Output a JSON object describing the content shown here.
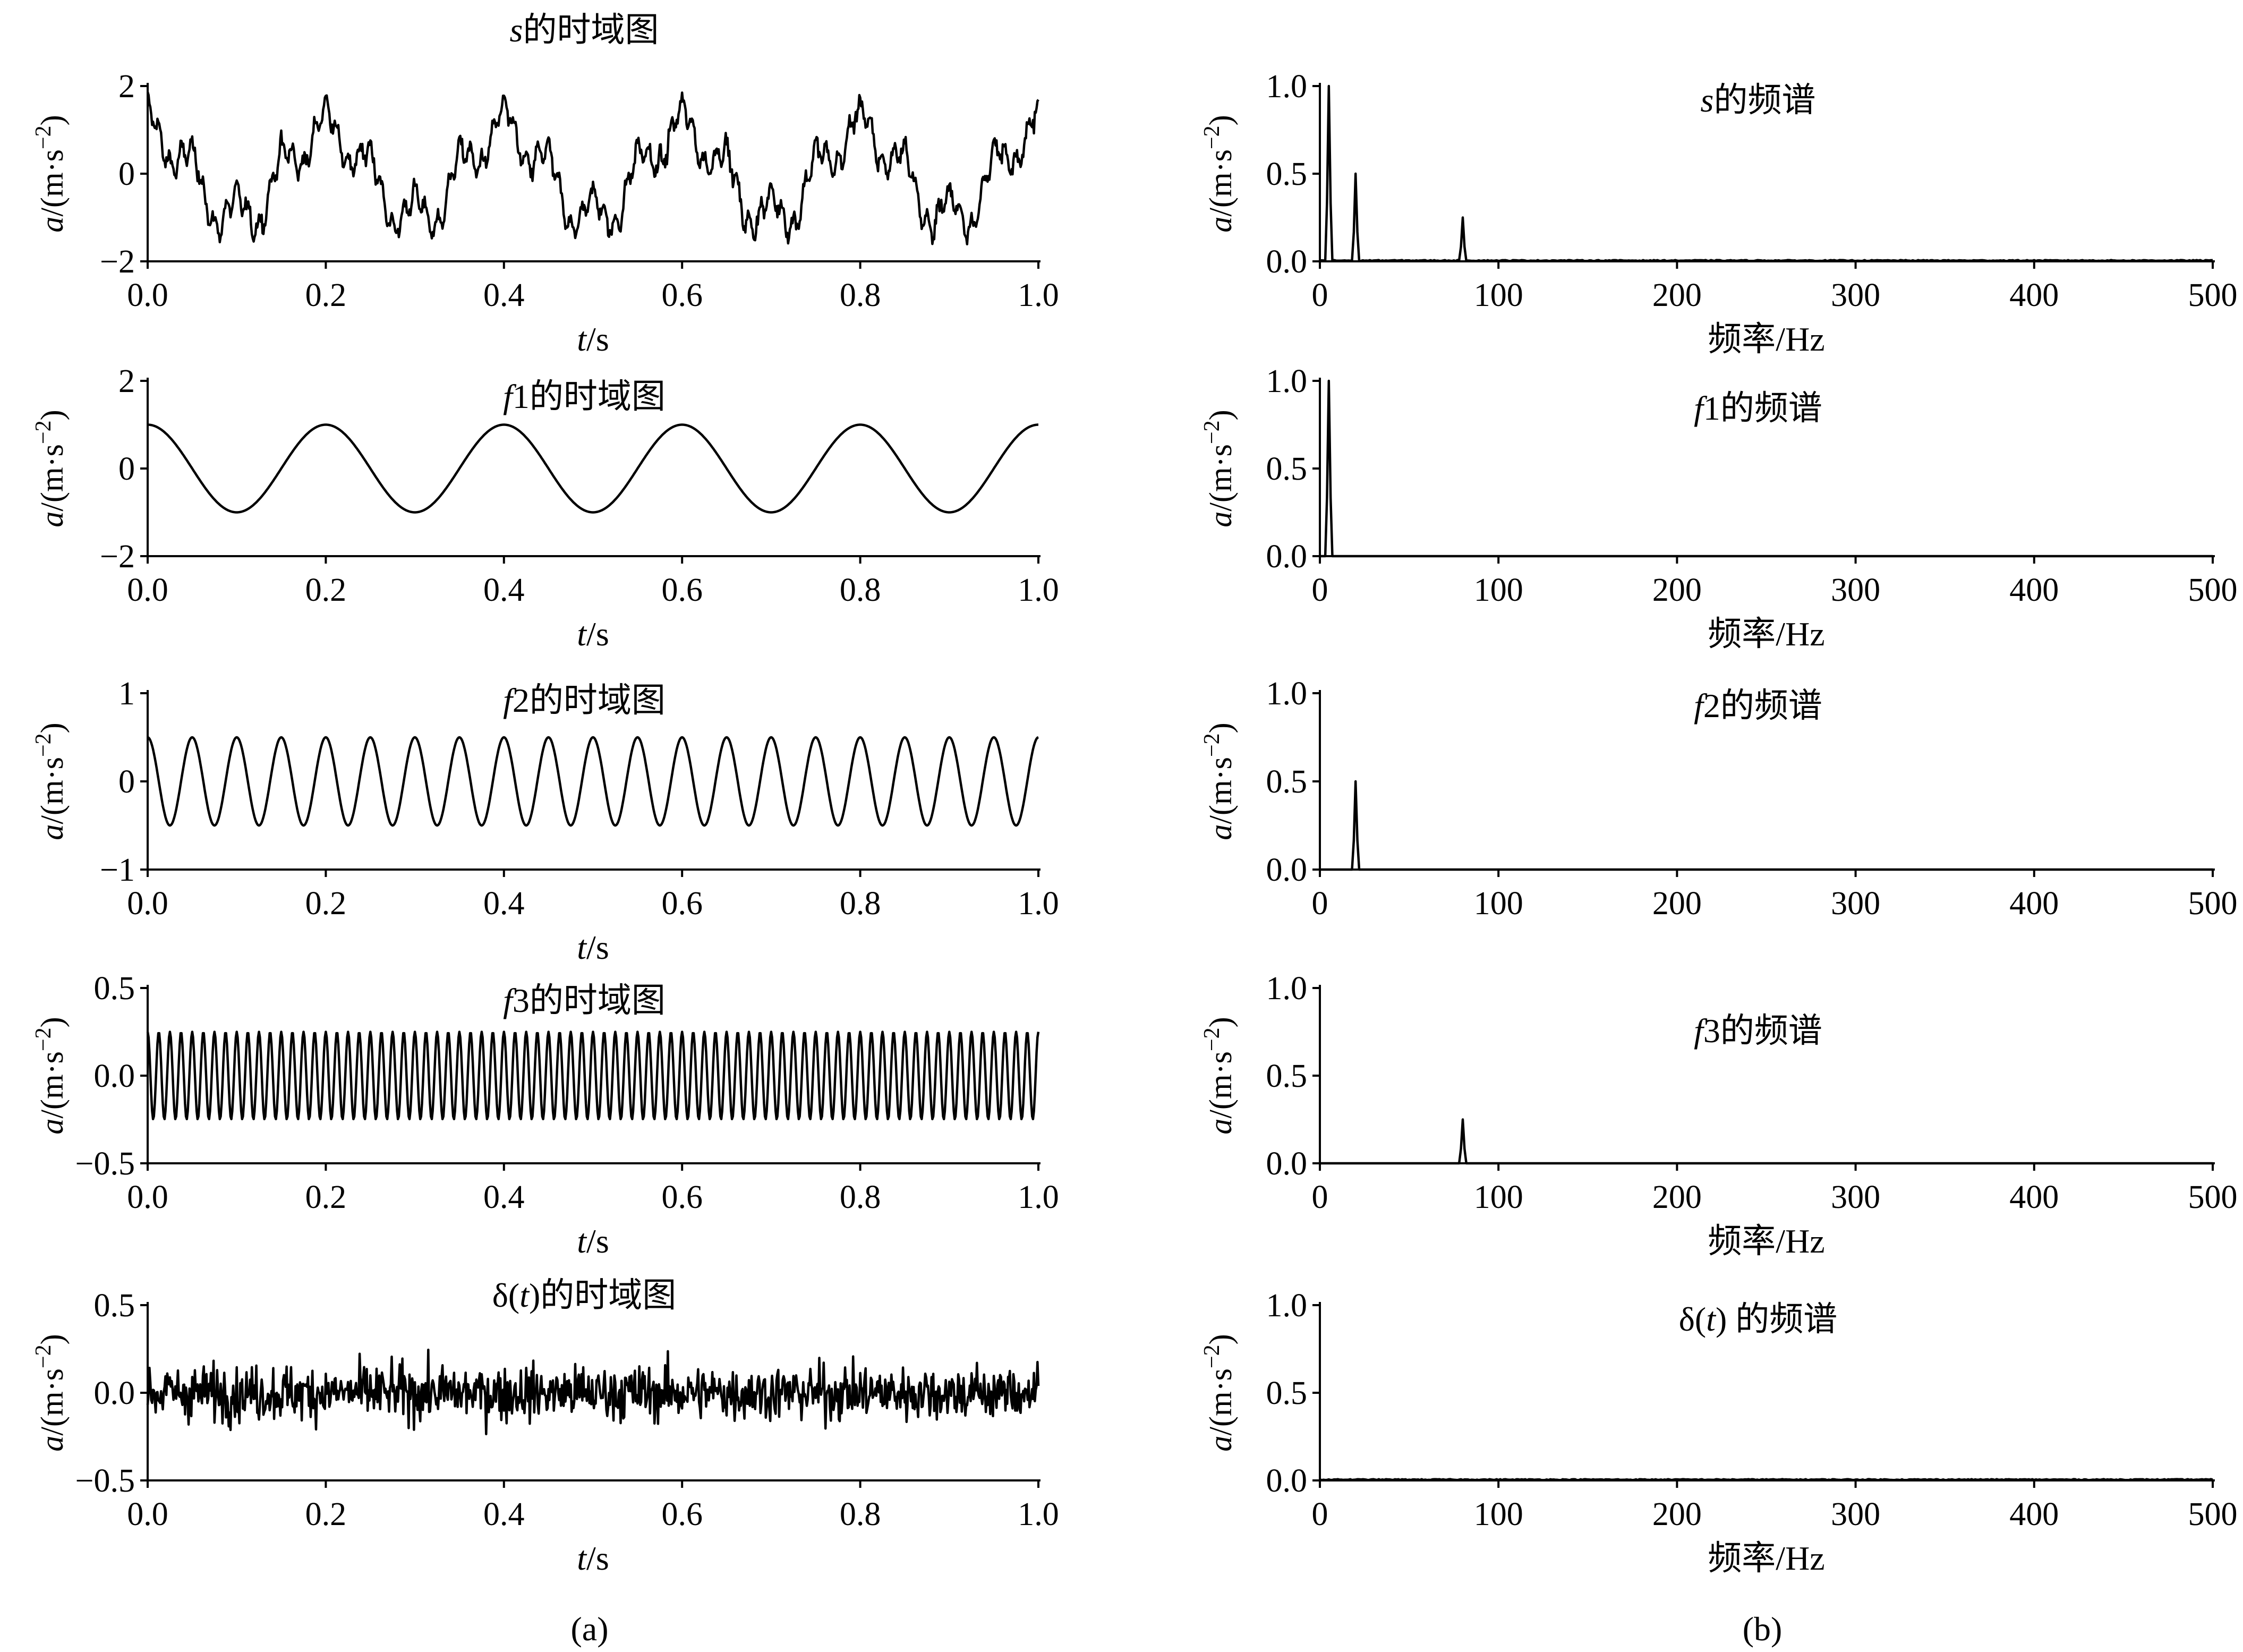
{
  "figure": {
    "captions": {
      "a": "(a)",
      "b": "(b)"
    },
    "colors": {
      "line": "#000000",
      "background": "#ffffff"
    }
  },
  "chart_data": [
    {
      "id": "s-time",
      "type": "line",
      "panel": "a",
      "title": "s的时域图",
      "title_parts": [
        {
          "t": "s",
          "i": true
        },
        {
          "t": "的时域图"
        }
      ],
      "xlabel": "t/s",
      "xlabel_parts": [
        {
          "t": "t",
          "i": true
        },
        {
          "t": "/s"
        }
      ],
      "ylabel": "a/(m·s⁻²)",
      "xlim": [
        0,
        1
      ],
      "ylim": [
        -2,
        2
      ],
      "xticks": [
        "0.0",
        "0.2",
        "0.4",
        "0.6",
        "0.8",
        "1.0"
      ],
      "yticks": [
        "−2",
        "0",
        "2"
      ],
      "series": [
        {
          "signal": "sum",
          "components": [
            {
              "component": "cos",
              "amplitude": 1,
              "frequency_hz": 5
            },
            {
              "component": "cos",
              "amplitude": 0.5,
              "frequency_hz": 20
            },
            {
              "component": "cos",
              "amplitude": 0.25,
              "frequency_hz": 80
            },
            {
              "component": "noise",
              "amplitude": 0.12
            }
          ]
        }
      ]
    },
    {
      "id": "f1-time",
      "type": "line",
      "panel": "a",
      "title": "f1的时域图",
      "title_parts": [
        {
          "t": "f",
          "i": true
        },
        {
          "t": "1的时域图"
        }
      ],
      "xlabel": "t/s",
      "xlabel_parts": [
        {
          "t": "t",
          "i": true
        },
        {
          "t": "/s"
        }
      ],
      "ylabel": "a/(m·s⁻²)",
      "xlim": [
        0,
        1
      ],
      "ylim": [
        -2,
        2
      ],
      "xticks": [
        "0.0",
        "0.2",
        "0.4",
        "0.6",
        "0.8",
        "1.0"
      ],
      "yticks": [
        "−2",
        "0",
        "2"
      ],
      "series": [
        {
          "signal": "cos",
          "amplitude": 1,
          "frequency_hz": 5
        }
      ]
    },
    {
      "id": "f2-time",
      "type": "line",
      "panel": "a",
      "title": "f2的时域图",
      "title_parts": [
        {
          "t": "f",
          "i": true
        },
        {
          "t": "2的时域图"
        }
      ],
      "xlabel": "t/s",
      "xlabel_parts": [
        {
          "t": "t",
          "i": true
        },
        {
          "t": "/s"
        }
      ],
      "ylabel": "a/(m·s⁻²)",
      "xlim": [
        0,
        1
      ],
      "ylim": [
        -1,
        1
      ],
      "xticks": [
        "0.0",
        "0.2",
        "0.4",
        "0.6",
        "0.8",
        "1.0"
      ],
      "yticks": [
        "−1",
        "0",
        "1"
      ],
      "series": [
        {
          "signal": "cos",
          "amplitude": 0.5,
          "frequency_hz": 20
        }
      ]
    },
    {
      "id": "f3-time",
      "type": "line",
      "panel": "a",
      "title": "f3的时域图",
      "title_parts": [
        {
          "t": "f",
          "i": true
        },
        {
          "t": "3的时域图"
        }
      ],
      "xlabel": "t/s",
      "xlabel_parts": [
        {
          "t": "t",
          "i": true
        },
        {
          "t": "/s"
        }
      ],
      "ylabel": "a/(m·s⁻²)",
      "xlim": [
        0,
        1
      ],
      "ylim": [
        -0.5,
        0.5
      ],
      "xticks": [
        "0.0",
        "0.2",
        "0.4",
        "0.6",
        "0.8",
        "1.0"
      ],
      "yticks": [
        "−0.5",
        "0.0",
        "0.5"
      ],
      "series": [
        {
          "signal": "cos",
          "amplitude": 0.25,
          "frequency_hz": 80
        }
      ]
    },
    {
      "id": "noise-time",
      "type": "line",
      "panel": "a",
      "title": "δ(t)的时域图",
      "title_parts": [
        {
          "t": "δ("
        },
        {
          "t": "t",
          "i": true
        },
        {
          "t": ")的时域图"
        }
      ],
      "xlabel": "t/s",
      "xlabel_parts": [
        {
          "t": "t",
          "i": true
        },
        {
          "t": "/s"
        }
      ],
      "ylabel": "a/(m·s⁻²)",
      "xlim": [
        0,
        1
      ],
      "ylim": [
        -0.5,
        0.5
      ],
      "xticks": [
        "0.0",
        "0.2",
        "0.4",
        "0.6",
        "0.8",
        "1.0"
      ],
      "yticks": [
        "−0.5",
        "0.0",
        "0.5"
      ],
      "series": [
        {
          "signal": "noise",
          "amplitude": 0.12
        }
      ]
    },
    {
      "id": "s-spectrum",
      "type": "line",
      "panel": "b",
      "title": "s的频谱",
      "title_parts": [
        {
          "t": "s",
          "i": true
        },
        {
          "t": "的频谱"
        }
      ],
      "xlabel": "频率/Hz",
      "xlabel_parts": [
        {
          "t": "频率/Hz"
        }
      ],
      "ylabel": "a/(m·s⁻²)",
      "xlim": [
        0,
        500
      ],
      "ylim": [
        0,
        1
      ],
      "xticks": [
        "0",
        "100",
        "200",
        "300",
        "400",
        "500"
      ],
      "yticks": [
        "0.0",
        "0.5",
        "1.0"
      ],
      "peaks": [
        {
          "x": 5,
          "y": 1.0
        },
        {
          "x": 20,
          "y": 0.5
        },
        {
          "x": 80,
          "y": 0.25
        }
      ],
      "noise_floor": 0.006
    },
    {
      "id": "f1-spectrum",
      "type": "line",
      "panel": "b",
      "title": "f1的频谱",
      "title_parts": [
        {
          "t": "f",
          "i": true
        },
        {
          "t": "1的频谱"
        }
      ],
      "xlabel": "频率/Hz",
      "xlabel_parts": [
        {
          "t": "频率/Hz"
        }
      ],
      "ylabel": "a/(m·s⁻²)",
      "xlim": [
        0,
        500
      ],
      "ylim": [
        0,
        1
      ],
      "xticks": [
        "0",
        "100",
        "200",
        "300",
        "400",
        "500"
      ],
      "yticks": [
        "0.0",
        "0.5",
        "1.0"
      ],
      "peaks": [
        {
          "x": 5,
          "y": 1.0
        }
      ],
      "noise_floor": 0
    },
    {
      "id": "f2-spectrum",
      "type": "line",
      "panel": "b",
      "title": "f2的频谱",
      "title_parts": [
        {
          "t": "f",
          "i": true
        },
        {
          "t": "2的频谱"
        }
      ],
      "xlabel": "",
      "xlabel_parts": [],
      "ylabel": "a/(m·s⁻²)",
      "xlim": [
        0,
        500
      ],
      "ylim": [
        0,
        1
      ],
      "xticks": [
        "0",
        "100",
        "200",
        "300",
        "400",
        "500"
      ],
      "yticks": [
        "0.0",
        "0.5",
        "1.0"
      ],
      "peaks": [
        {
          "x": 20,
          "y": 0.5
        }
      ],
      "noise_floor": 0
    },
    {
      "id": "f3-spectrum",
      "type": "line",
      "panel": "b",
      "title": "f3的频谱",
      "title_parts": [
        {
          "t": "f",
          "i": true
        },
        {
          "t": "3的频谱"
        }
      ],
      "xlabel": "频率/Hz",
      "xlabel_parts": [
        {
          "t": "频率/Hz"
        }
      ],
      "ylabel": "a/(m·s⁻²)",
      "xlim": [
        0,
        500
      ],
      "ylim": [
        0,
        1
      ],
      "xticks": [
        "0",
        "100",
        "200",
        "300",
        "400",
        "500"
      ],
      "yticks": [
        "0.0",
        "0.5",
        "1.0"
      ],
      "peaks": [
        {
          "x": 80,
          "y": 0.25
        }
      ],
      "noise_floor": 0
    },
    {
      "id": "noise-spectrum",
      "type": "line",
      "panel": "b",
      "title": "δ(t) 的频谱",
      "title_parts": [
        {
          "t": "δ("
        },
        {
          "t": "t",
          "i": true
        },
        {
          "t": ") 的频谱"
        }
      ],
      "xlabel": "频率/Hz",
      "xlabel_parts": [
        {
          "t": "频率/Hz"
        }
      ],
      "ylabel": "a/(m·s⁻²)",
      "xlim": [
        0,
        500
      ],
      "ylim": [
        0,
        1
      ],
      "xticks": [
        "0",
        "100",
        "200",
        "300",
        "400",
        "500"
      ],
      "yticks": [
        "0.0",
        "0.5",
        "1.0"
      ],
      "peaks": [],
      "noise_floor": 0.006
    }
  ]
}
